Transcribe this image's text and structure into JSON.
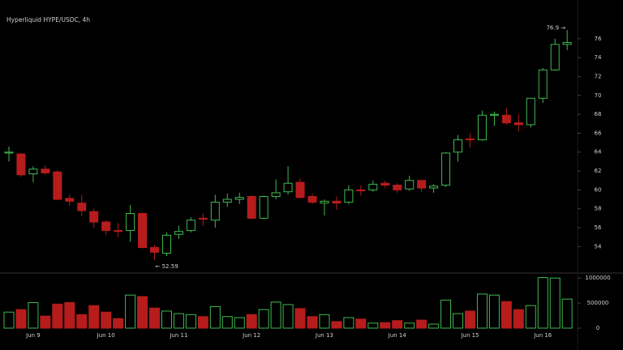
{
  "chart_data": {
    "type": "candlestick",
    "title": "Hyperliquid HYPE/USDC, 4h",
    "categories": [
      null,
      null,
      "Jun 9",
      null,
      null,
      null,
      null,
      null,
      "Jun 10",
      null,
      null,
      null,
      null,
      null,
      "Jun 11",
      null,
      null,
      null,
      null,
      null,
      "Jun 12",
      null,
      null,
      null,
      null,
      null,
      "Jun 13",
      null,
      null,
      null,
      null,
      null,
      "Jun 14",
      null,
      null,
      null,
      null,
      null,
      "Jun 15",
      null,
      null,
      null,
      null,
      null,
      "Jun 16",
      null,
      null
    ],
    "open": [
      63.9,
      63.8,
      61.7,
      62.2,
      61.9,
      59.1,
      58.6,
      57.7,
      56.6,
      55.7,
      55.7,
      57.5,
      53.9,
      53.3,
      55.3,
      55.7,
      57.0,
      56.8,
      58.7,
      59.0,
      59.3,
      57.0,
      59.3,
      59.8,
      60.8,
      59.3,
      58.6,
      58.8,
      58.7,
      60.0,
      60.0,
      60.7,
      60.5,
      60.1,
      61.0,
      60.2,
      60.5,
      64.0,
      65.4,
      65.3,
      67.9,
      67.9,
      67.1,
      66.9,
      69.7,
      72.7,
      75.4
    ],
    "high": [
      64.6,
      63.9,
      62.5,
      62.6,
      62.1,
      59.5,
      59.5,
      58.0,
      56.8,
      56.5,
      58.4,
      57.6,
      54.2,
      55.5,
      56.2,
      57.1,
      57.5,
      59.5,
      59.6,
      59.7,
      59.4,
      59.4,
      61.1,
      62.5,
      61.2,
      59.6,
      59.0,
      59.3,
      60.5,
      60.5,
      61.0,
      61.0,
      60.7,
      61.5,
      61.1,
      60.6,
      64.0,
      65.8,
      66.0,
      68.4,
      68.3,
      68.7,
      68.0,
      69.7,
      72.9,
      76.0,
      76.9
    ],
    "low": [
      63.0,
      61.4,
      60.8,
      61.6,
      58.9,
      58.3,
      57.2,
      56.0,
      55.2,
      55.0,
      54.5,
      53.8,
      52.59,
      53.0,
      54.8,
      55.5,
      56.2,
      56.0,
      58.2,
      58.5,
      56.9,
      56.9,
      59.0,
      59.5,
      59.1,
      58.5,
      57.3,
      57.9,
      58.5,
      59.4,
      59.8,
      60.2,
      59.7,
      59.9,
      59.8,
      59.7,
      60.3,
      63.0,
      64.5,
      65.2,
      66.8,
      66.9,
      66.2,
      66.6,
      69.2,
      72.6,
      74.8
    ],
    "close": [
      64.0,
      61.6,
      62.2,
      61.8,
      59.0,
      58.8,
      57.8,
      56.6,
      55.7,
      55.6,
      57.5,
      53.9,
      53.4,
      55.2,
      55.6,
      56.8,
      56.9,
      58.7,
      59.0,
      59.2,
      57.0,
      59.3,
      59.7,
      60.7,
      59.2,
      58.7,
      58.8,
      58.6,
      60.0,
      59.9,
      60.6,
      60.5,
      60.0,
      61.0,
      60.2,
      60.4,
      63.9,
      65.3,
      65.3,
      67.9,
      68.0,
      67.1,
      66.9,
      69.7,
      72.7,
      75.4,
      75.6
    ],
    "volume": [
      320000,
      370000,
      510000,
      240000,
      480000,
      510000,
      270000,
      450000,
      320000,
      190000,
      660000,
      630000,
      400000,
      340000,
      290000,
      270000,
      230000,
      430000,
      230000,
      210000,
      270000,
      370000,
      520000,
      470000,
      390000,
      230000,
      270000,
      130000,
      210000,
      180000,
      100000,
      110000,
      150000,
      100000,
      160000,
      80000,
      560000,
      290000,
      340000,
      680000,
      660000,
      530000,
      370000,
      450000,
      1010000,
      1000000,
      580000
    ],
    "ylim": [
      51.2,
      80.1
    ],
    "yticks": [
      54,
      56,
      58,
      60,
      62,
      64,
      66,
      68,
      70,
      72,
      74,
      76
    ],
    "volume_ylim": [
      0,
      1100000
    ],
    "volume_yticks": [
      0,
      500000,
      1000000
    ],
    "up_color": "#3fb950",
    "down_color": "#b71c1c",
    "max_label": "76.9 →",
    "min_label": "← 52.59"
  }
}
